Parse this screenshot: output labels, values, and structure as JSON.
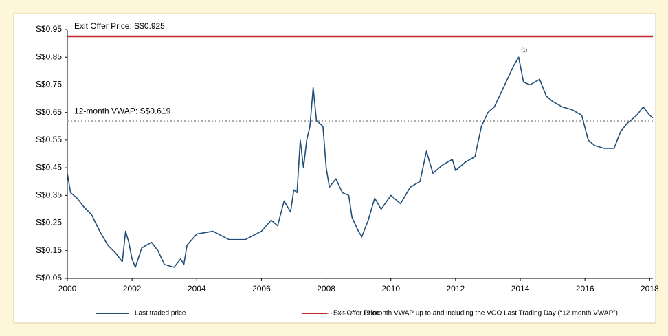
{
  "chart_data": {
    "type": "line",
    "x": [
      2000.0,
      2000.1,
      2000.3,
      2000.5,
      2000.75,
      2001.0,
      2001.25,
      2001.5,
      2001.7,
      2001.8,
      2001.9,
      2002.0,
      2002.1,
      2002.3,
      2002.6,
      2002.8,
      2003.0,
      2003.3,
      2003.5,
      2003.6,
      2003.7,
      2004.0,
      2004.5,
      2005.0,
      2005.5,
      2006.0,
      2006.3,
      2006.5,
      2006.7,
      2006.9,
      2007.0,
      2007.1,
      2007.2,
      2007.3,
      2007.4,
      2007.5,
      2007.6,
      2007.7,
      2007.9,
      2008.0,
      2008.1,
      2008.3,
      2008.5,
      2008.7,
      2008.8,
      2009.0,
      2009.1,
      2009.3,
      2009.5,
      2009.7,
      2010.0,
      2010.3,
      2010.6,
      2010.9,
      2011.1,
      2011.3,
      2011.6,
      2011.9,
      2012.0,
      2012.3,
      2012.6,
      2012.8,
      2013.0,
      2013.2,
      2013.4,
      2013.6,
      2013.8,
      2013.95,
      2014.1,
      2014.3,
      2014.6,
      2014.8,
      2015.0,
      2015.3,
      2015.6,
      2015.9,
      2016.1,
      2016.3,
      2016.6,
      2016.9,
      2017.1,
      2017.3,
      2017.6,
      2017.8,
      2018.0,
      2018.1
    ],
    "series": [
      {
        "name": "Last traded price",
        "color": "#1f4e79",
        "values": [
          0.43,
          0.36,
          0.34,
          0.31,
          0.28,
          0.22,
          0.17,
          0.14,
          0.11,
          0.22,
          0.18,
          0.12,
          0.09,
          0.16,
          0.18,
          0.15,
          0.1,
          0.09,
          0.12,
          0.1,
          0.17,
          0.21,
          0.22,
          0.19,
          0.19,
          0.22,
          0.26,
          0.24,
          0.33,
          0.29,
          0.37,
          0.36,
          0.55,
          0.45,
          0.55,
          0.6,
          0.74,
          0.62,
          0.6,
          0.45,
          0.38,
          0.41,
          0.36,
          0.35,
          0.27,
          0.22,
          0.2,
          0.26,
          0.34,
          0.3,
          0.35,
          0.32,
          0.38,
          0.4,
          0.51,
          0.43,
          0.46,
          0.48,
          0.44,
          0.47,
          0.49,
          0.6,
          0.65,
          0.67,
          0.72,
          0.77,
          0.82,
          0.85,
          0.76,
          0.75,
          0.77,
          0.71,
          0.69,
          0.67,
          0.66,
          0.64,
          0.55,
          0.53,
          0.52,
          0.52,
          0.58,
          0.61,
          0.64,
          0.67,
          0.64,
          0.63
        ]
      }
    ],
    "reference_lines": [
      {
        "name": "Exit Offer Price",
        "value": 0.925,
        "color": "#c0282d",
        "label": "Exit Offer Price: S$0.925",
        "style": "solid"
      },
      {
        "name": "12-month VWAP up to and including the VGO Last Trading Day (“12-month VWAP”)",
        "value": 0.619,
        "color": "#a6a6a6",
        "label": "12-month VWAP:  S$0.619",
        "style": "dotted"
      }
    ],
    "annotations": [
      {
        "text": "(1)",
        "x": 2013.95,
        "y": 0.85
      }
    ],
    "xlim": [
      2000,
      2018.1
    ],
    "xticks": [
      2000,
      2002,
      2004,
      2006,
      2008,
      2010,
      2012,
      2014,
      2016,
      2018
    ],
    "ylim": [
      0.05,
      0.95
    ],
    "yticks": [
      {
        "value": 0.05,
        "label": "S$0.05"
      },
      {
        "value": 0.15,
        "label": "S$0.15"
      },
      {
        "value": 0.25,
        "label": "S$0.25"
      },
      {
        "value": 0.35,
        "label": "S$0.35"
      },
      {
        "value": 0.45,
        "label": "S$0.45"
      },
      {
        "value": 0.55,
        "label": "S$0.55"
      },
      {
        "value": 0.65,
        "label": "S$0.65"
      },
      {
        "value": 0.75,
        "label": "S$0.75"
      },
      {
        "value": 0.85,
        "label": "S$0.85"
      },
      {
        "value": 0.95,
        "label": "S$0.95"
      }
    ],
    "grid": false
  }
}
